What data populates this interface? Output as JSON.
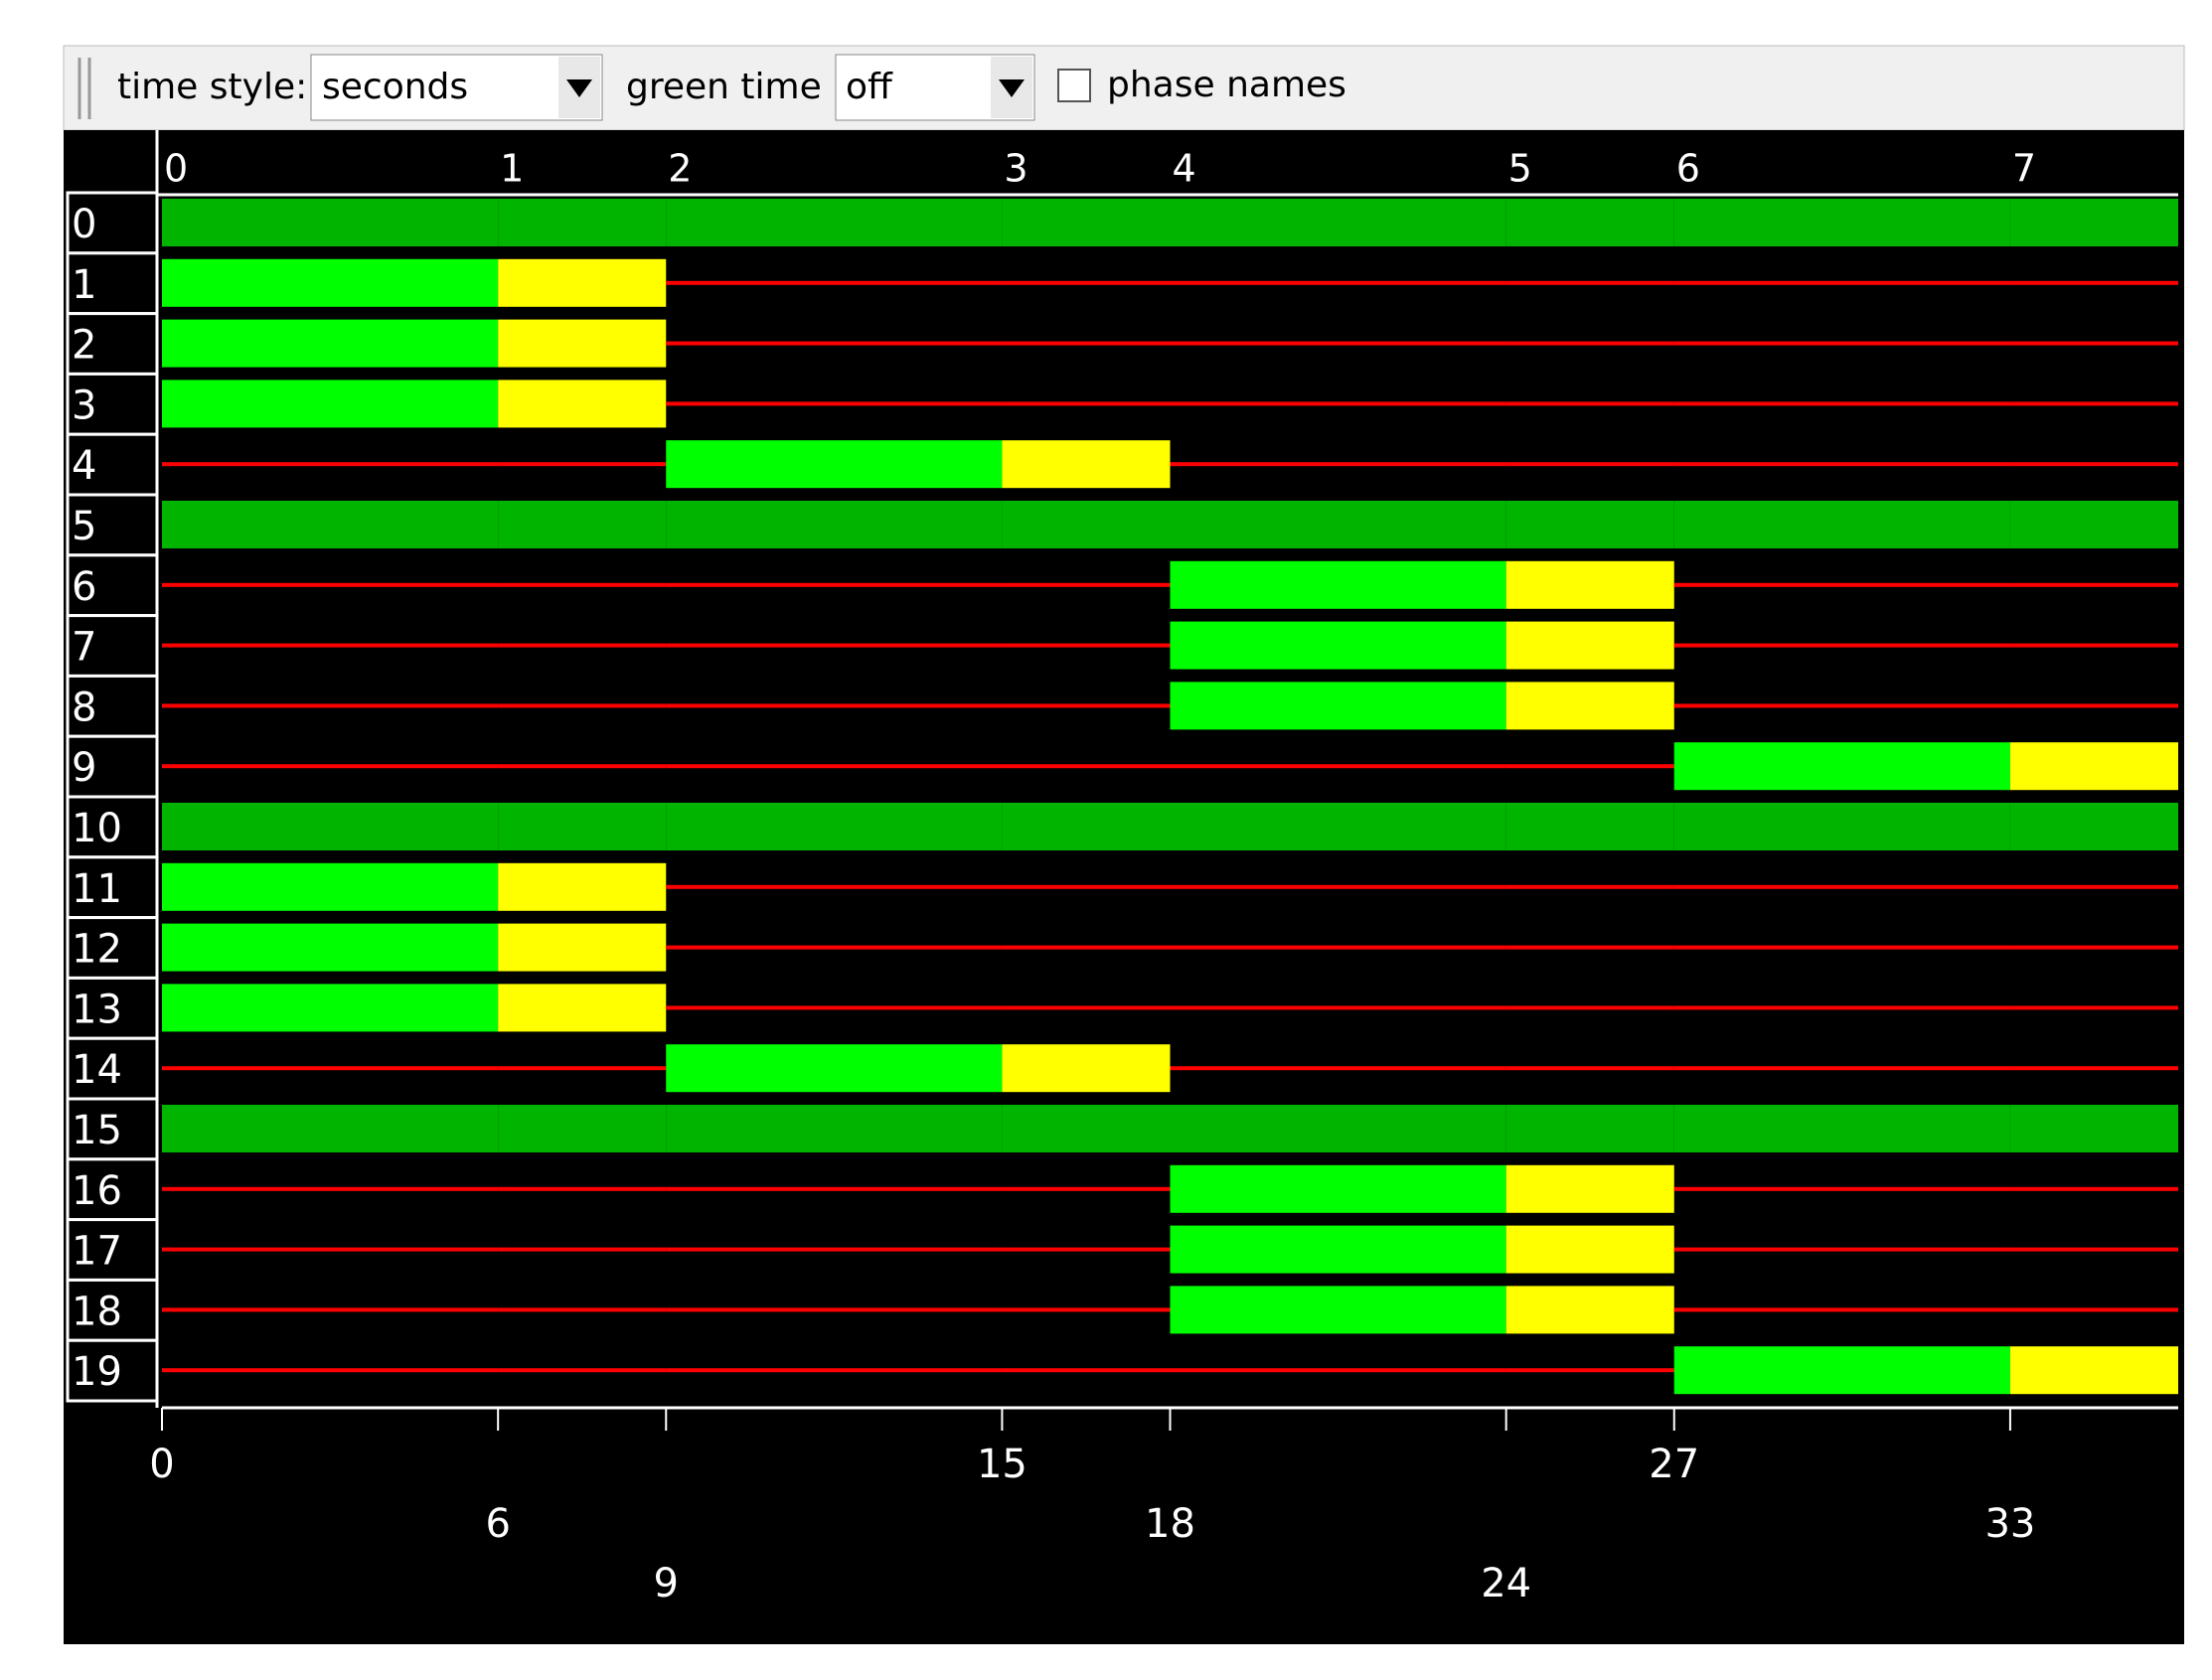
{
  "toolbar": {
    "time_style_label": "time style:",
    "time_style_value": "seconds",
    "green_time_label": "green time",
    "green_time_value": "off",
    "phase_names_label": "phase names"
  },
  "phase_indices": [
    0,
    1,
    2,
    3,
    4,
    5,
    6,
    7
  ],
  "links": [
    0,
    1,
    2,
    3,
    4,
    5,
    6,
    7,
    8,
    9,
    10,
    11,
    12,
    13,
    14,
    15,
    16,
    17,
    18,
    19
  ],
  "time_labels": [
    0,
    6,
    9,
    15,
    18,
    24,
    27,
    33
  ],
  "xlim": [
    0,
    36
  ],
  "states": [
    "gGGGrgrrrrgGGGrgrrrr",
    "gyyyrgrrrrgyyyrgrrrr",
    "grrrGgrrrrgrrrGgrrrr",
    "grrrygrrrrgrrrygrrrr",
    "grrrrgGGGrgrrrrgGGGr",
    "grrrrgyyyrgrrrrgyyyr",
    "grrrrgrrrGgrrrrgrrrG",
    "grrrrgrrrygrrrrgrrry"
  ],
  "state_colors": {
    "G": "#00ff00",
    "g": "#00b400",
    "y": "#ffff00",
    "r": "#ff0000"
  }
}
